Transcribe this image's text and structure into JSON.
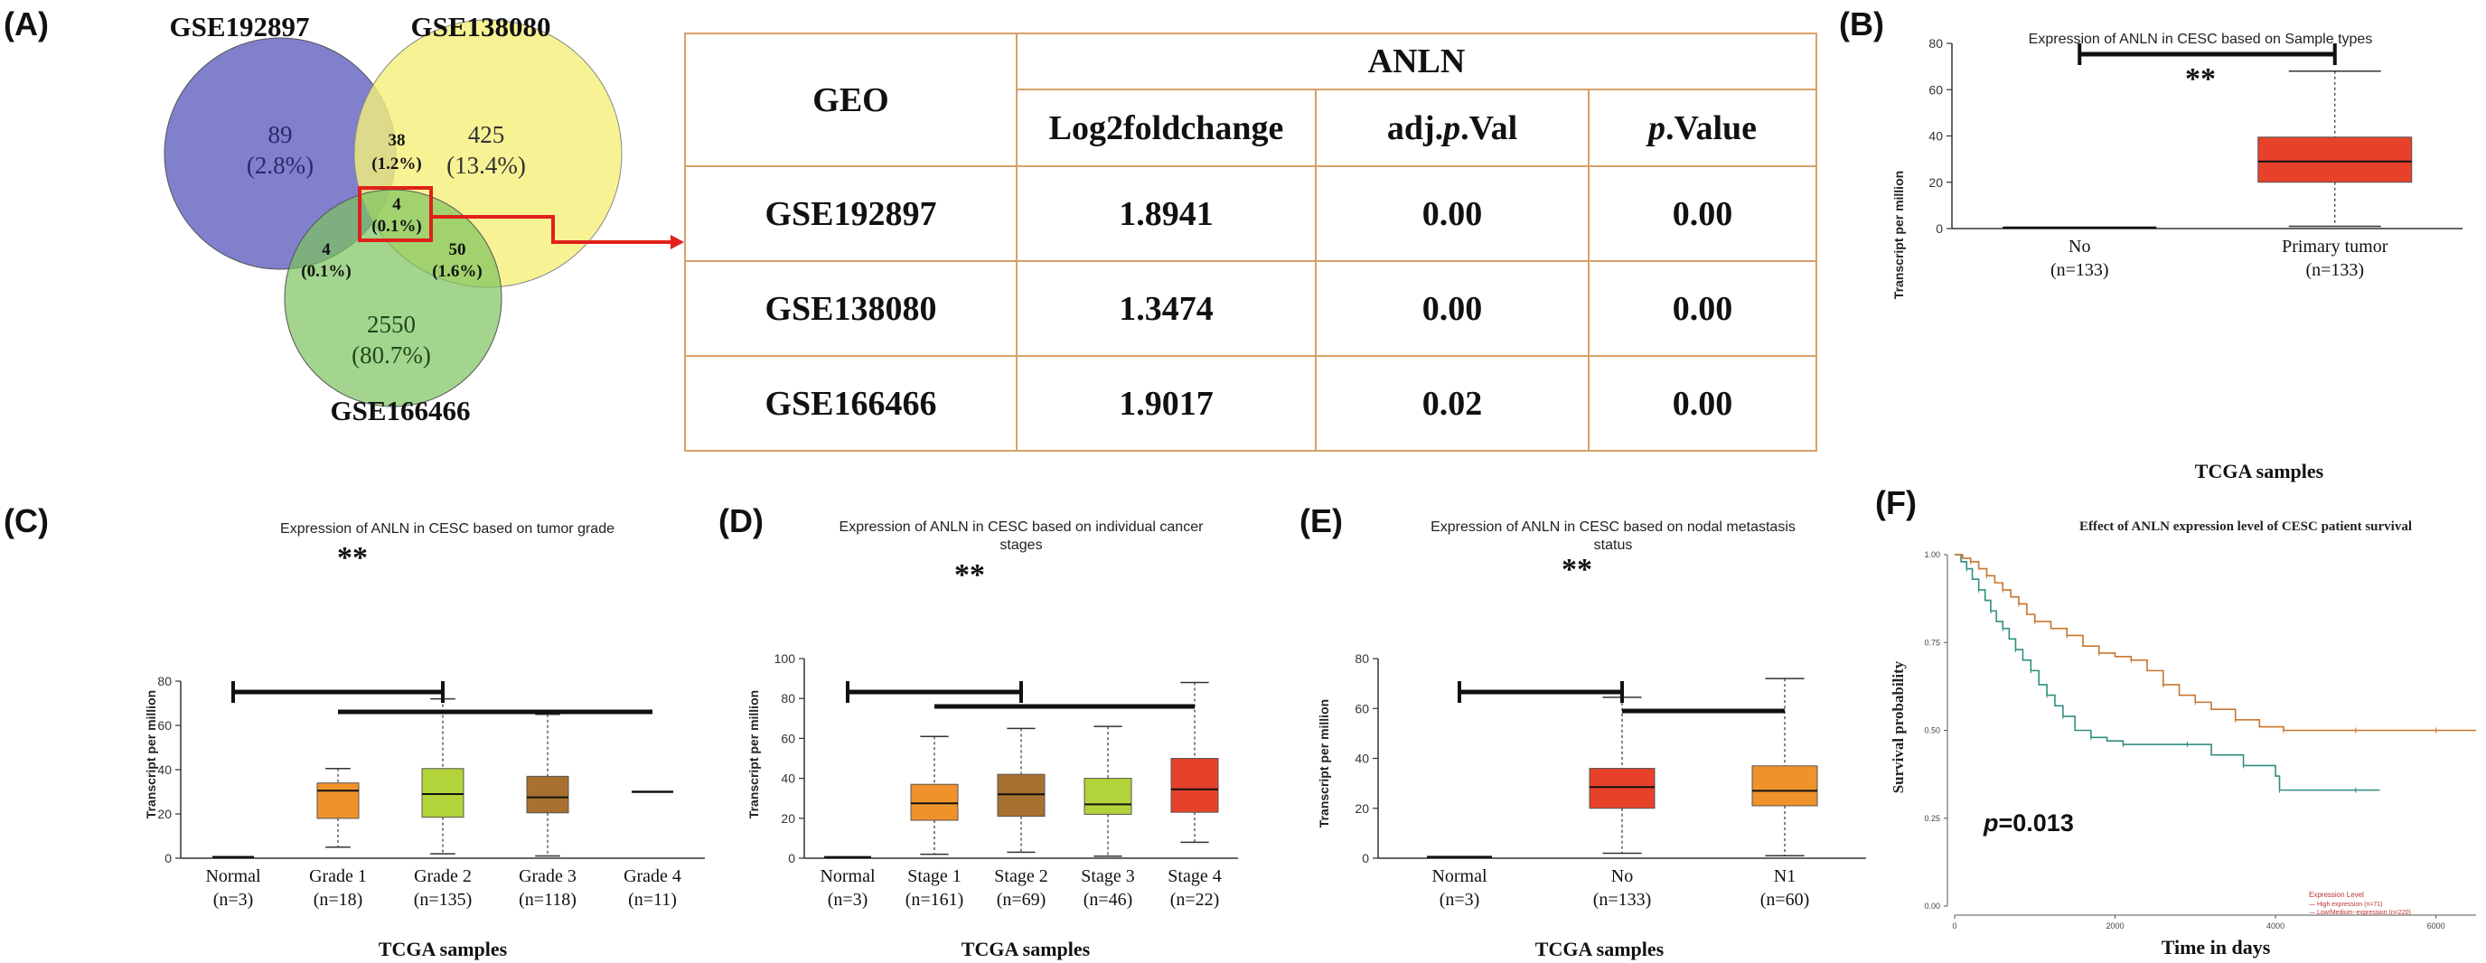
{
  "panelA": {
    "label": "(A)",
    "venn": {
      "set1": "GSE192897",
      "set2": "GSE138080",
      "set3": "GSE166466",
      "regions": {
        "only1": {
          "count": "89",
          "pct": "(2.8%)"
        },
        "only2": {
          "count": "425",
          "pct": "(13.4%)"
        },
        "only3": {
          "count": "2550",
          "pct": "(80.7%)"
        },
        "s12": {
          "count": "38",
          "pct": "(1.2%)"
        },
        "s13": {
          "count": "4",
          "pct": "(0.1%)"
        },
        "s23": {
          "count": "50",
          "pct": "(1.6%)"
        },
        "s123": {
          "count": "4",
          "pct": "(0.1%)"
        }
      },
      "colors": {
        "set1": "#6b6ac4",
        "set2": "#f5f07a",
        "set3": "#7cc35e",
        "highlight": "#e0201a"
      }
    },
    "table": {
      "gene": "ANLN",
      "geo_header": "GEO",
      "col1": "Log2foldchange",
      "col2_pre": "adj.",
      "col2_it": "p",
      "col2_post": ".Val",
      "col3_it": "p",
      "col3_post": ".Value",
      "rows": [
        {
          "geo": "GSE192897",
          "lfc": "1.8941",
          "adj": "0.00",
          "p": "0.00"
        },
        {
          "geo": "GSE138080",
          "lfc": "1.3474",
          "adj": "0.00",
          "p": "0.00"
        },
        {
          "geo": "GSE166466",
          "lfc": "1.9017",
          "adj": "0.02",
          "p": "0.00"
        }
      ]
    }
  },
  "panelB": {
    "label": "(B)",
    "title": "Expression of ANLN in CESC based on Sample types",
    "ylabel": "Transcript per million",
    "xlabel": "TCGA samples",
    "sig": "**"
  },
  "panelC": {
    "label": "(C)",
    "title": "Expression of ANLN in CESC based on tumor grade",
    "ylabel": "Transcript per million",
    "xlabel": "TCGA samples",
    "sig": "**"
  },
  "panelD": {
    "label": "(D)",
    "title_line1": "Expression of ANLN in CESC based on individual cancer",
    "title_line2": "stages",
    "ylabel": "Transcript per million",
    "xlabel": "TCGA samples",
    "sig": "**"
  },
  "panelE": {
    "label": "(E)",
    "title_line1": "Expression of ANLN in CESC based on nodal metastasis",
    "title_line2": "status",
    "ylabel": "Transcript per million",
    "xlabel": "TCGA samples",
    "sig": "**"
  },
  "panelF": {
    "label": "(F)",
    "title": "Effect of ANLN expression level of CESC patient survival",
    "ylabel": "Survival probability",
    "xlabel": "Time in days",
    "pvalue_it": "p",
    "pvalue_rest": "=0.013",
    "legend_title": "Expression Level",
    "legend_high": "— High expression (n=71)",
    "legend_low": "— Low/Medium−expression (n=220)"
  },
  "chart_data": [
    {
      "panel": "B",
      "type": "box",
      "title": "Expression of ANLN in CESC based on Sample types",
      "xlabel": "TCGA samples",
      "ylabel": "Transcript per million",
      "ylim": [
        0,
        80
      ],
      "yticks": [
        0,
        20,
        40,
        60,
        80
      ],
      "categories": [
        {
          "name": "No",
          "n": "(n=133)",
          "min": 0.2,
          "q1": 0.3,
          "median": 0.4,
          "q3": 0.5,
          "max": 0.6,
          "color": "#333333"
        },
        {
          "name": "Primary tumor",
          "n": "(n=133)",
          "min": 1,
          "q1": 20,
          "median": 29,
          "q3": 39.5,
          "max": 68,
          "color": "#e8412a"
        }
      ]
    },
    {
      "panel": "C",
      "type": "box",
      "title": "Expression of ANLN in CESC based on tumor grade",
      "xlabel": "TCGA samples",
      "ylabel": "Transcript per million",
      "ylim": [
        0,
        80
      ],
      "yticks": [
        0,
        20,
        40,
        60,
        80
      ],
      "categories": [
        {
          "name": "Normal",
          "n": "(n=3)",
          "min": 0.2,
          "q1": 0.3,
          "median": 0.5,
          "q3": 0.6,
          "max": 0.7,
          "color": "#333333"
        },
        {
          "name": "Grade 1",
          "n": "(n=18)",
          "min": 5,
          "q1": 18,
          "median": 30.5,
          "q3": 34,
          "max": 40.5,
          "color": "#f0922b"
        },
        {
          "name": "Grade 2",
          "n": "(n=135)",
          "min": 2,
          "q1": 18.5,
          "median": 29,
          "q3": 40.5,
          "max": 72,
          "color": "#b3d33a"
        },
        {
          "name": "Grade 3",
          "n": "(n=118)",
          "min": 1,
          "q1": 20.5,
          "median": 27.5,
          "q3": 37,
          "max": 65,
          "color": "#a8712f"
        },
        {
          "name": "Grade 4",
          "n": "(n=11)",
          "min": 30,
          "q1": 30,
          "median": 30,
          "q3": 30,
          "max": 30,
          "color": "#333333"
        }
      ]
    },
    {
      "panel": "D",
      "type": "box",
      "title": "Expression of ANLN in CESC based on individual cancer stages",
      "xlabel": "TCGA samples",
      "ylabel": "Transcript per million",
      "ylim": [
        0,
        100
      ],
      "yticks": [
        0,
        20,
        40,
        60,
        80,
        100
      ],
      "categories": [
        {
          "name": "Normal",
          "n": "(n=3)",
          "min": 0.2,
          "q1": 0.3,
          "median": 0.5,
          "q3": 0.6,
          "max": 0.7,
          "color": "#333333"
        },
        {
          "name": "Stage 1",
          "n": "(n=161)",
          "min": 2,
          "q1": 19,
          "median": 27.5,
          "q3": 37,
          "max": 61,
          "color": "#f0922b"
        },
        {
          "name": "Stage 2",
          "n": "(n=69)",
          "min": 3,
          "q1": 21,
          "median": 32,
          "q3": 42,
          "max": 65,
          "color": "#a8712f"
        },
        {
          "name": "Stage 3",
          "n": "(n=46)",
          "min": 1,
          "q1": 22,
          "median": 27,
          "q3": 40,
          "max": 66,
          "color": "#b3d33a"
        },
        {
          "name": "Stage 4",
          "n": "(n=22)",
          "min": 8,
          "q1": 23,
          "median": 34.5,
          "q3": 50,
          "max": 88,
          "color": "#e8412a"
        }
      ]
    },
    {
      "panel": "E",
      "type": "box",
      "title": "Expression of ANLN in CESC based on nodal metastasis status",
      "xlabel": "TCGA samples",
      "ylabel": "Transcript per million",
      "ylim": [
        0,
        80
      ],
      "yticks": [
        0,
        20,
        40,
        60,
        80
      ],
      "categories": [
        {
          "name": "Normal",
          "n": "(n=3)",
          "min": 0.2,
          "q1": 0.3,
          "median": 0.5,
          "q3": 0.6,
          "max": 0.7,
          "color": "#333333"
        },
        {
          "name": "No",
          "n": "(n=133)",
          "min": 2,
          "q1": 20,
          "median": 28.5,
          "q3": 36,
          "max": 64.5,
          "color": "#e8412a"
        },
        {
          "name": "N1",
          "n": "(n=60)",
          "min": 1,
          "q1": 21,
          "median": 27,
          "q3": 37,
          "max": 72,
          "color": "#f0922b"
        }
      ]
    },
    {
      "panel": "F",
      "type": "line",
      "title": "Effect of ANLN expression level of CESC patient survival",
      "xlabel": "Time in days",
      "ylabel": "Survival probability",
      "xlim": [
        0,
        6500
      ],
      "ylim": [
        0,
        1
      ],
      "xticks": [
        0,
        2000,
        4000,
        6000
      ],
      "yticks": [
        0.0,
        0.25,
        0.5,
        0.75,
        1.0
      ],
      "series": [
        {
          "name": "High expression (n=71)",
          "color": "#2f8f80",
          "x": [
            0,
            80,
            150,
            220,
            300,
            380,
            450,
            520,
            600,
            680,
            760,
            850,
            950,
            1050,
            1150,
            1250,
            1350,
            1500,
            1700,
            1900,
            2100,
            2500,
            2900,
            3200,
            3600,
            4000,
            4050,
            4500,
            5000,
            5300
          ],
          "y": [
            1.0,
            0.98,
            0.96,
            0.93,
            0.9,
            0.87,
            0.84,
            0.81,
            0.79,
            0.76,
            0.73,
            0.7,
            0.67,
            0.63,
            0.6,
            0.57,
            0.54,
            0.5,
            0.48,
            0.47,
            0.46,
            0.46,
            0.46,
            0.43,
            0.4,
            0.37,
            0.33,
            0.33,
            0.33,
            0.33
          ]
        },
        {
          "name": "Low/Medium−expression (n=220)",
          "color": "#c8742a",
          "x": [
            0,
            100,
            200,
            300,
            400,
            500,
            600,
            700,
            800,
            900,
            1000,
            1200,
            1400,
            1600,
            1800,
            2000,
            2200,
            2400,
            2600,
            2800,
            3000,
            3200,
            3500,
            3800,
            4100,
            4500,
            5000,
            5500,
            6000,
            6500
          ],
          "y": [
            1.0,
            0.99,
            0.98,
            0.96,
            0.94,
            0.92,
            0.9,
            0.88,
            0.86,
            0.83,
            0.81,
            0.79,
            0.77,
            0.74,
            0.72,
            0.71,
            0.7,
            0.67,
            0.63,
            0.6,
            0.58,
            0.56,
            0.53,
            0.51,
            0.5,
            0.5,
            0.5,
            0.5,
            0.5,
            0.5
          ]
        }
      ]
    }
  ]
}
